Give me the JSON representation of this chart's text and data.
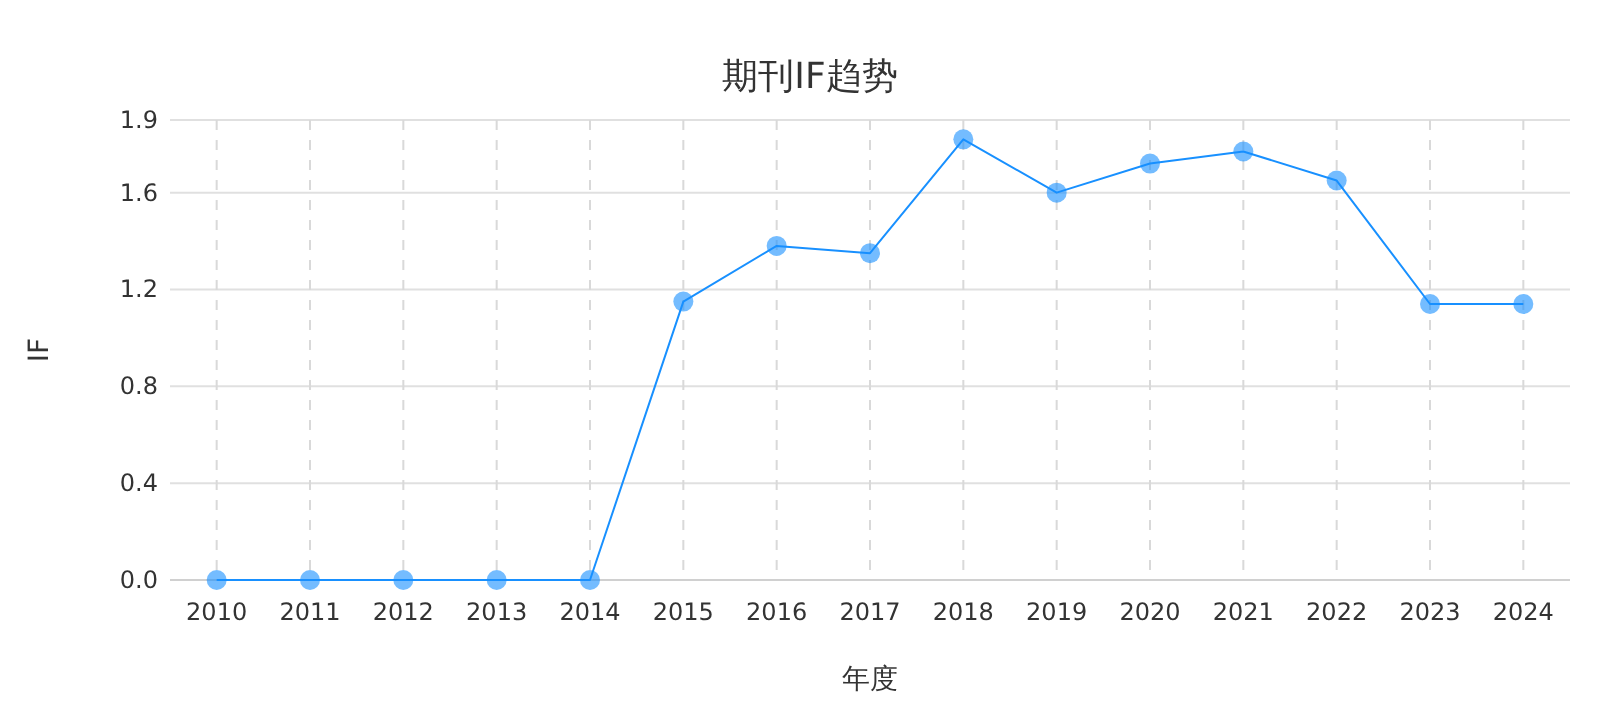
{
  "chart_data": {
    "type": "line",
    "title": "期刊IF趋势",
    "xlabel": "年度",
    "ylabel": "IF",
    "categories": [
      "2010",
      "2011",
      "2012",
      "2013",
      "2014",
      "2015",
      "2016",
      "2017",
      "2018",
      "2019",
      "2020",
      "2021",
      "2022",
      "2023",
      "2024"
    ],
    "series": [
      {
        "color": "#1890ff",
        "values": [
          0,
          0,
          0,
          0,
          0,
          1.15,
          1.38,
          1.35,
          1.82,
          1.6,
          1.72,
          1.77,
          1.65,
          1.14,
          1.14
        ]
      }
    ],
    "ylim": [
      0,
      1.9
    ],
    "yticks": [
      {
        "value": 0,
        "label": "0.0"
      },
      0.4,
      0.8,
      1.2,
      1.6,
      1.9
    ],
    "grid": true,
    "marker": "circle"
  }
}
